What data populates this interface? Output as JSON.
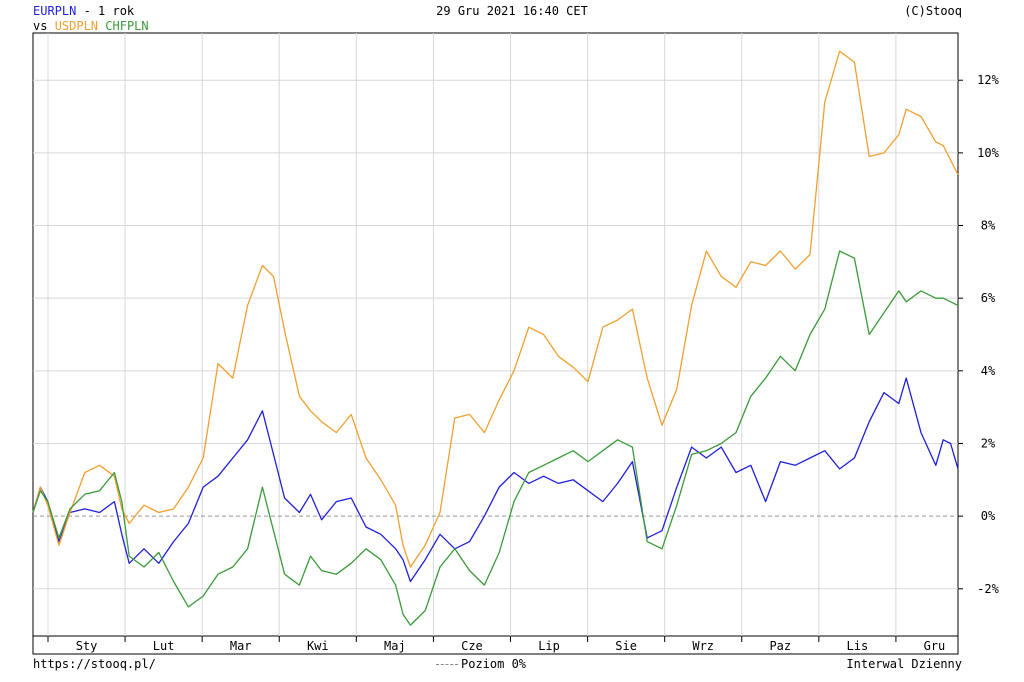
{
  "header": {
    "main_symbol": "EURPLN",
    "period": " - 1 rok",
    "vs_label": "vs",
    "compare_1": "USDPLN",
    "compare_2": "CHFPLN",
    "datetime": "29 Gru 2021 16:40 CET",
    "copyright": "(C)Stooq"
  },
  "footer": {
    "url": "https://stooq.pl/",
    "zero_level": "Poziom 0%",
    "interval": "Interwal Dzienny"
  },
  "colors": {
    "EURPLN": "#1f1fdc",
    "USDPLN": "#f0a030",
    "CHFPLN": "#3a9a3a",
    "grid": "#d8d8d8",
    "zero": "#999999"
  },
  "chart_data": {
    "type": "line",
    "title": "",
    "xlabel": "",
    "ylabel": "",
    "ylim": [
      -3.3,
      13.3
    ],
    "y_ticks": [
      -2,
      0,
      2,
      4,
      6,
      8,
      10,
      12
    ],
    "y_tick_labels": [
      "-2%",
      "0%",
      "2%",
      "4%",
      "6%",
      "8%",
      "10%",
      "12%"
    ],
    "x_ticks": [
      "Sty",
      "Lut",
      "Mar",
      "Kwi",
      "Maj",
      "Cze",
      "Lip",
      "Sie",
      "Wrz",
      "Paz",
      "Lis",
      "Gru"
    ],
    "zero_line": true,
    "grid": true,
    "x_range": [
      0,
      250
    ],
    "series": [
      {
        "name": "EURPLN",
        "color": "#1f1fdc",
        "x": [
          0,
          2,
          4,
          7,
          10,
          14,
          18,
          22,
          24,
          26,
          30,
          34,
          38,
          42,
          46,
          50,
          54,
          58,
          62,
          65,
          68,
          72,
          75,
          78,
          82,
          86,
          90,
          94,
          98,
          100,
          102,
          106,
          110,
          114,
          118,
          122,
          126,
          130,
          134,
          138,
          142,
          146,
          150,
          154,
          158,
          162,
          166,
          170,
          174,
          178,
          182,
          186,
          190,
          194,
          198,
          202,
          206,
          210,
          214,
          218,
          222,
          226,
          230,
          234,
          236,
          240,
          244,
          246,
          248,
          250
        ],
        "values": [
          0.1,
          0.8,
          0.4,
          -0.7,
          0.1,
          0.2,
          0.1,
          0.4,
          -0.5,
          -1.3,
          -0.9,
          -1.3,
          -0.7,
          -0.2,
          0.8,
          1.1,
          1.6,
          2.1,
          2.9,
          1.7,
          0.5,
          0.1,
          0.6,
          -0.1,
          0.4,
          0.5,
          -0.3,
          -0.5,
          -0.9,
          -1.2,
          -1.8,
          -1.2,
          -0.5,
          -0.9,
          -0.7,
          0.0,
          0.8,
          1.2,
          0.9,
          1.1,
          0.9,
          1.0,
          0.7,
          0.4,
          0.9,
          1.5,
          -0.6,
          -0.4,
          0.8,
          1.9,
          1.6,
          1.9,
          1.2,
          1.4,
          0.4,
          1.5,
          1.4,
          1.6,
          1.8,
          1.3,
          1.6,
          2.6,
          3.4,
          3.1,
          3.8,
          2.3,
          1.4,
          2.1,
          2.0,
          1.3
        ]
      },
      {
        "name": "USDPLN",
        "color": "#f0a030",
        "x": [
          0,
          2,
          4,
          7,
          10,
          14,
          18,
          22,
          24,
          26,
          30,
          34,
          38,
          42,
          46,
          50,
          54,
          58,
          62,
          65,
          68,
          72,
          75,
          78,
          82,
          86,
          90,
          94,
          98,
          100,
          102,
          106,
          110,
          114,
          118,
          122,
          126,
          130,
          134,
          138,
          142,
          146,
          150,
          154,
          158,
          162,
          166,
          170,
          174,
          178,
          182,
          186,
          190,
          194,
          198,
          202,
          206,
          210,
          214,
          218,
          222,
          226,
          230,
          234,
          236,
          240,
          244,
          246,
          248,
          250
        ],
        "values": [
          0.1,
          0.8,
          0.3,
          -0.8,
          0.1,
          1.2,
          1.4,
          1.1,
          0.2,
          -0.2,
          0.3,
          0.1,
          0.2,
          0.8,
          1.6,
          4.2,
          3.8,
          5.8,
          6.9,
          6.6,
          5.1,
          3.3,
          2.9,
          2.6,
          2.3,
          2.8,
          1.6,
          1.0,
          0.3,
          -0.8,
          -1.4,
          -0.8,
          0.1,
          2.7,
          2.8,
          2.3,
          3.2,
          4.0,
          5.2,
          5.0,
          4.4,
          4.1,
          3.7,
          5.2,
          5.4,
          5.7,
          3.8,
          2.5,
          3.5,
          5.8,
          7.3,
          6.6,
          6.3,
          7.0,
          6.9,
          7.3,
          6.8,
          7.2,
          11.4,
          12.8,
          12.5,
          9.9,
          10.0,
          10.5,
          11.2,
          11.0,
          10.3,
          10.2,
          9.8,
          9.4
        ]
      },
      {
        "name": "CHFPLN",
        "color": "#3a9a3a",
        "x": [
          0,
          2,
          4,
          7,
          10,
          14,
          18,
          22,
          24,
          26,
          30,
          34,
          38,
          42,
          46,
          50,
          54,
          58,
          62,
          65,
          68,
          72,
          75,
          78,
          82,
          86,
          90,
          94,
          98,
          100,
          102,
          106,
          110,
          114,
          118,
          122,
          126,
          130,
          134,
          138,
          142,
          146,
          150,
          154,
          158,
          162,
          166,
          170,
          174,
          178,
          182,
          186,
          190,
          194,
          198,
          202,
          206,
          210,
          214,
          218,
          222,
          226,
          230,
          234,
          236,
          240,
          244,
          246,
          248,
          250
        ],
        "values": [
          0.1,
          0.7,
          0.4,
          -0.6,
          0.2,
          0.6,
          0.7,
          1.2,
          0.4,
          -1.1,
          -1.4,
          -1.0,
          -1.8,
          -2.5,
          -2.2,
          -1.6,
          -1.4,
          -0.9,
          0.8,
          -0.4,
          -1.6,
          -1.9,
          -1.1,
          -1.5,
          -1.6,
          -1.3,
          -0.9,
          -1.2,
          -1.9,
          -2.7,
          -3.0,
          -2.6,
          -1.4,
          -0.9,
          -1.5,
          -1.9,
          -1.0,
          0.4,
          1.2,
          1.4,
          1.6,
          1.8,
          1.5,
          1.8,
          2.1,
          1.9,
          -0.7,
          -0.9,
          0.3,
          1.7,
          1.8,
          2.0,
          2.3,
          3.3,
          3.8,
          4.4,
          4.0,
          5.0,
          5.7,
          7.3,
          7.1,
          5.0,
          5.6,
          6.2,
          5.9,
          6.2,
          6.0,
          6.0,
          5.9,
          5.8
        ]
      }
    ]
  }
}
